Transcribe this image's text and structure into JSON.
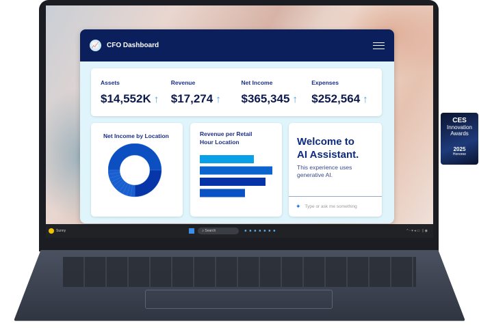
{
  "dashboard": {
    "title": "CFO Dashboard",
    "kpis": [
      {
        "label": "Assets",
        "value": "$14,552K"
      },
      {
        "label": "Revenue",
        "value": "$17,274"
      },
      {
        "label": "Net Income",
        "value": "$365,345"
      },
      {
        "label": "Expenses",
        "value": "$252,564"
      }
    ],
    "trend_icon": "arrow-up-icon",
    "trend_glyph": "↑",
    "assistant": {
      "heading_line1": "Welcome to",
      "heading_line2": "AI Assistant.",
      "subtitle": "This experience uses generative AI.",
      "placeholder": "Type or ask me something"
    }
  },
  "chart_data": [
    {
      "type": "pie",
      "title": "Net Income by Location",
      "style": "donut",
      "values": [
        50,
        25,
        2.5,
        2.5,
        2.5,
        2.5,
        2.5,
        2.5,
        2.5,
        2.5,
        2.5,
        2.5
      ],
      "colors": [
        "#0b4fc0",
        "#0636a8",
        "#1a5fd0",
        "#1a5fd0",
        "#1a5fd0",
        "#1a5fd0",
        "#1a5fd0",
        "#1a5fd0",
        "#1a5fd0",
        "#1a5fd0",
        "#1a5fd0",
        "#1a5fd0"
      ]
    },
    {
      "type": "bar",
      "orientation": "horizontal",
      "title": "Revenue per Retail Hour Location",
      "values": [
        79,
        106,
        96,
        66
      ],
      "colors": [
        "#0aa0e8",
        "#0b63d0",
        "#0633a8",
        "#0a52c4"
      ]
    }
  ],
  "taskbar": {
    "weather": "Sunny",
    "search": "Search"
  },
  "badge": {
    "brand": "CES",
    "line1": "Innovation",
    "line2": "Awards",
    "year": "2025",
    "sub": "Honoree"
  },
  "colors": {
    "header": "#0a1f5c",
    "accent": "#1b2f85",
    "panel": "#dff4fb"
  }
}
